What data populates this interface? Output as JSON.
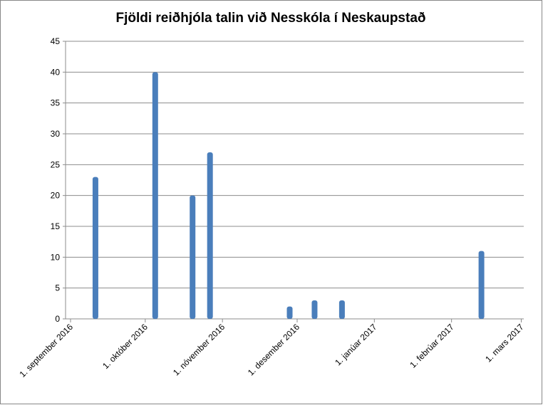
{
  "chart_data": {
    "type": "bar",
    "title": "Fjöldi reiðhjóla talin við Nesskóla í Neskaupstað",
    "x": [
      "2016-09-11",
      "2016-10-05",
      "2016-10-20",
      "2016-10-27",
      "2016-11-28",
      "2016-12-08",
      "2016-12-19",
      "2017-02-13"
    ],
    "values": [
      23,
      40,
      20,
      27,
      2,
      3,
      3,
      11
    ],
    "color": "#4a7ebb",
    "xlim": [
      "2016-08-30",
      "2017-03-02"
    ],
    "xticks": [
      {
        "value": "2016-09-01",
        "label": "1. september 2016"
      },
      {
        "value": "2016-10-01",
        "label": "1. október 2016"
      },
      {
        "value": "2016-11-01",
        "label": "1. nóvember 2016"
      },
      {
        "value": "2016-12-01",
        "label": "1. desember 2016"
      },
      {
        "value": "2017-01-01",
        "label": "1. janúar 2017"
      },
      {
        "value": "2017-02-01",
        "label": "1. febrúar 2017"
      },
      {
        "value": "2017-03-01",
        "label": "1. mars 2017"
      }
    ],
    "ylim": [
      0,
      45
    ],
    "yticks": [
      0,
      5,
      10,
      15,
      20,
      25,
      30,
      35,
      40,
      45
    ],
    "grid": true
  }
}
